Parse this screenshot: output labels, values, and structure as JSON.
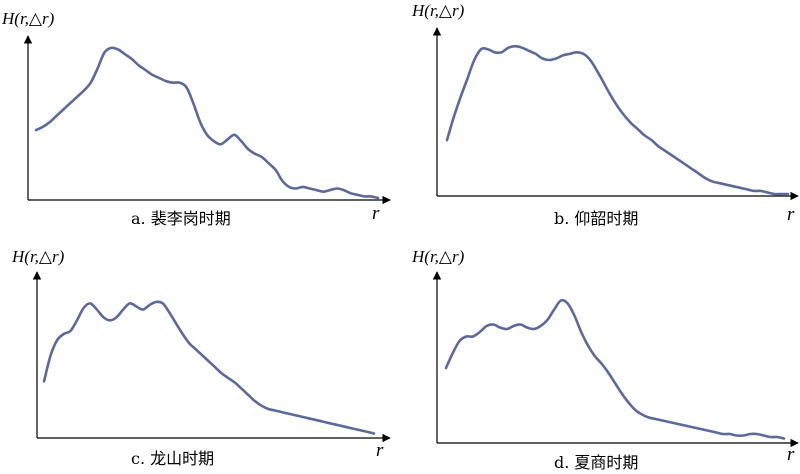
{
  "chart_data": [
    {
      "type": "line",
      "caption": "a. 裴李岗时期",
      "ylabel": "H(r,△r)",
      "xlabel": "r",
      "series": [
        {
          "x": [
            0,
            2,
            4,
            6,
            8,
            10,
            12,
            14,
            16,
            18,
            20,
            22,
            24,
            26,
            28,
            30,
            32,
            34,
            36,
            38,
            40,
            42,
            44,
            46,
            48,
            50,
            52,
            54,
            56,
            58,
            60,
            62,
            64,
            66,
            68,
            70,
            72,
            74,
            76,
            78,
            80,
            82,
            84,
            86,
            88,
            90,
            92,
            94,
            96,
            98,
            100
          ],
          "values": [
            0.43,
            0.45,
            0.48,
            0.52,
            0.56,
            0.6,
            0.64,
            0.68,
            0.73,
            0.82,
            0.92,
            0.95,
            0.94,
            0.91,
            0.88,
            0.84,
            0.81,
            0.78,
            0.76,
            0.74,
            0.73,
            0.73,
            0.7,
            0.6,
            0.48,
            0.4,
            0.36,
            0.34,
            0.37,
            0.4,
            0.36,
            0.31,
            0.28,
            0.26,
            0.22,
            0.18,
            0.11,
            0.07,
            0.06,
            0.07,
            0.06,
            0.05,
            0.04,
            0.05,
            0.06,
            0.05,
            0.03,
            0.02,
            0.01,
            0.01,
            0.0
          ]
        }
      ]
    },
    {
      "type": "line",
      "caption": "b. 仰韶时期",
      "ylabel": "H(r,△r)",
      "xlabel": "r",
      "series": [
        {
          "x": [
            0,
            2,
            4,
            6,
            8,
            10,
            12,
            14,
            16,
            18,
            20,
            22,
            24,
            26,
            28,
            30,
            32,
            34,
            36,
            38,
            40,
            42,
            44,
            46,
            48,
            50,
            52,
            54,
            56,
            58,
            60,
            62,
            64,
            66,
            68,
            70,
            72,
            74,
            76,
            78,
            80,
            82,
            84,
            86,
            88,
            90,
            92,
            94,
            96,
            98,
            100
          ],
          "values": [
            0.35,
            0.5,
            0.63,
            0.75,
            0.87,
            0.94,
            0.94,
            0.92,
            0.92,
            0.95,
            0.96,
            0.95,
            0.93,
            0.91,
            0.88,
            0.87,
            0.88,
            0.9,
            0.91,
            0.92,
            0.91,
            0.87,
            0.8,
            0.72,
            0.64,
            0.57,
            0.51,
            0.46,
            0.42,
            0.38,
            0.35,
            0.31,
            0.28,
            0.25,
            0.22,
            0.19,
            0.16,
            0.13,
            0.1,
            0.08,
            0.07,
            0.06,
            0.05,
            0.04,
            0.03,
            0.02,
            0.02,
            0.01,
            0.0,
            0.0,
            0.0
          ]
        }
      ]
    },
    {
      "type": "line",
      "caption": "c. 龙山时期",
      "ylabel": "H(r,△r)",
      "xlabel": "r",
      "series": [
        {
          "x": [
            0,
            2,
            4,
            6,
            8,
            10,
            12,
            14,
            16,
            18,
            20,
            22,
            24,
            26,
            28,
            30,
            32,
            34,
            36,
            38,
            40,
            42,
            44,
            46,
            48,
            50,
            52,
            54,
            56,
            58,
            60,
            62,
            64,
            66,
            68,
            70,
            72,
            74,
            76,
            78,
            80,
            82,
            84,
            86,
            88,
            90,
            92,
            94,
            96,
            98,
            100
          ],
          "values": [
            0.35,
            0.52,
            0.62,
            0.66,
            0.68,
            0.75,
            0.83,
            0.86,
            0.82,
            0.77,
            0.75,
            0.77,
            0.82,
            0.86,
            0.84,
            0.82,
            0.85,
            0.87,
            0.86,
            0.8,
            0.73,
            0.66,
            0.6,
            0.56,
            0.52,
            0.48,
            0.44,
            0.4,
            0.37,
            0.34,
            0.3,
            0.26,
            0.22,
            0.19,
            0.17,
            0.16,
            0.15,
            0.14,
            0.13,
            0.12,
            0.11,
            0.1,
            0.09,
            0.08,
            0.07,
            0.06,
            0.05,
            0.04,
            0.03,
            0.02,
            0.01
          ]
        }
      ]
    },
    {
      "type": "line",
      "caption": "d. 夏商时期",
      "ylabel": "H(r,△r)",
      "xlabel": "r",
      "series": [
        {
          "x": [
            0,
            2,
            4,
            6,
            8,
            10,
            12,
            14,
            16,
            18,
            20,
            22,
            24,
            26,
            28,
            30,
            32,
            34,
            36,
            38,
            40,
            42,
            44,
            46,
            48,
            50,
            52,
            54,
            56,
            58,
            60,
            62,
            64,
            66,
            68,
            70,
            72,
            74,
            76,
            78,
            80,
            82,
            84,
            86,
            88,
            90,
            92,
            94,
            96,
            98,
            100
          ],
          "values": [
            0.48,
            0.58,
            0.66,
            0.69,
            0.69,
            0.72,
            0.76,
            0.77,
            0.75,
            0.74,
            0.76,
            0.77,
            0.75,
            0.74,
            0.76,
            0.8,
            0.87,
            0.93,
            0.91,
            0.83,
            0.72,
            0.63,
            0.56,
            0.51,
            0.45,
            0.38,
            0.31,
            0.25,
            0.2,
            0.17,
            0.15,
            0.14,
            0.13,
            0.12,
            0.11,
            0.1,
            0.09,
            0.08,
            0.07,
            0.06,
            0.05,
            0.04,
            0.04,
            0.03,
            0.03,
            0.04,
            0.04,
            0.03,
            0.02,
            0.02,
            0.01
          ]
        }
      ]
    }
  ]
}
